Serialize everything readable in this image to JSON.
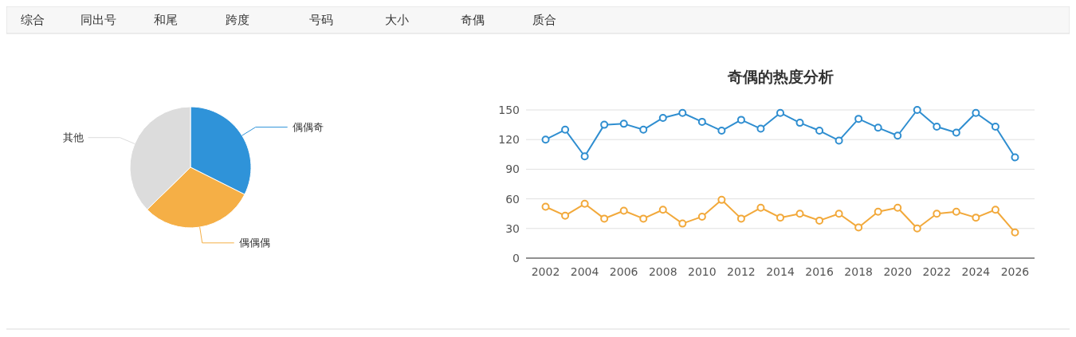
{
  "chart_data": [
    {
      "type": "other",
      "annotations": [
        "综合",
        "同出号",
        "和尾",
        "跨度",
        "号码",
        "大小",
        "奇偶",
        "质合"
      ]
    },
    {
      "type": "pie",
      "categories": [
        "偶偶奇",
        "偶偶偶",
        "其他"
      ],
      "values": [
        32.4,
        30.3,
        37.3
      ],
      "colors": [
        "#2f93d9",
        "#f5af46",
        "#dcdcdc"
      ]
    },
    {
      "type": "line",
      "title": "奇偶的热度分析",
      "x": [
        2002,
        2003,
        2004,
        2005,
        2006,
        2007,
        2008,
        2009,
        2010,
        2011,
        2012,
        2013,
        2014,
        2015,
        2016,
        2017,
        2018,
        2019,
        2020,
        2021,
        2022,
        2023,
        2024,
        2025,
        2026
      ],
      "xlim": [
        2001,
        2027
      ],
      "xticks": [
        2002,
        2004,
        2006,
        2008,
        2010,
        2012,
        2014,
        2016,
        2018,
        2020,
        2022,
        2024,
        2026
      ],
      "ylim": [
        0,
        150
      ],
      "yticks": [
        0,
        30,
        60,
        90,
        120,
        150
      ],
      "grid": "y",
      "marker": "circle",
      "series": [
        {
          "color": "#2f8ed0",
          "values": [
            120,
            130,
            103,
            135,
            136,
            130,
            142,
            147,
            138,
            129,
            140,
            131,
            147,
            137,
            129,
            119,
            141,
            132,
            124,
            150,
            133,
            127,
            147,
            133,
            102
          ]
        },
        {
          "color": "#f2a93b",
          "values": [
            52,
            43,
            55,
            40,
            48,
            40,
            49,
            35,
            42,
            59,
            40,
            51,
            41,
            45,
            38,
            45,
            31,
            47,
            51,
            30,
            45,
            47,
            41,
            49,
            26
          ]
        }
      ]
    }
  ]
}
